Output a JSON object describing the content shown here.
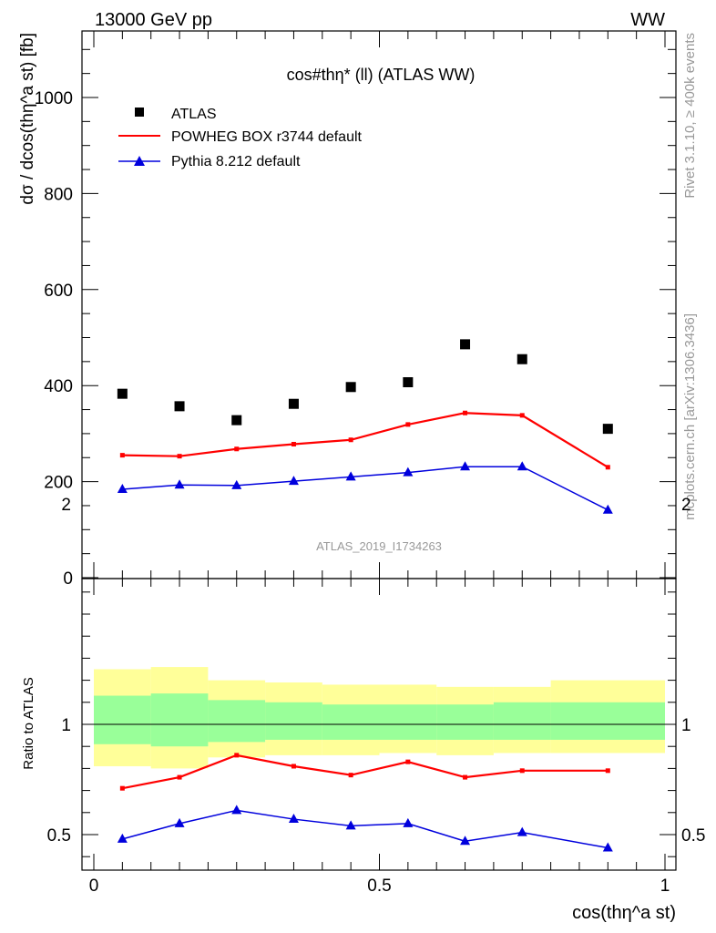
{
  "header": {
    "left": "13000 GeV pp",
    "right": "WW"
  },
  "chart_data": {
    "type": "scatter",
    "title": "cos#thη* (ll) (ATLAS WW)",
    "xlabel": "cos(thη^a st)",
    "ylabel": "dσ / dcos(thη^a st) [fb]",
    "ratio_ylabel": "Ratio to ATLAS",
    "xlim": [
      0,
      1
    ],
    "ylim": [
      0,
      1150
    ],
    "ratio_ylim": [
      0.3,
      2.3
    ],
    "watermark": "ATLAS_2019_I1734263",
    "side_text_top": "Rivet 3.1.10, ≥ 400k events",
    "side_text_bottom": "mcplots.cern.ch [arXiv:1306.3436]",
    "legend_position": "top-left",
    "x_ticks": [
      "0",
      "0.5",
      "1"
    ],
    "y_ticks": [
      "0",
      "200",
      "400",
      "600",
      "800",
      "1000"
    ],
    "ratio_ticks": [
      "0.5",
      "1",
      "2"
    ],
    "x": [
      0.05,
      0.15,
      0.25,
      0.35,
      0.45,
      0.55,
      0.65,
      0.75,
      0.9
    ],
    "x_bins": [
      [
        0.0,
        0.1
      ],
      [
        0.1,
        0.2
      ],
      [
        0.2,
        0.3
      ],
      [
        0.3,
        0.4
      ],
      [
        0.4,
        0.5
      ],
      [
        0.5,
        0.6
      ],
      [
        0.6,
        0.7
      ],
      [
        0.7,
        0.8
      ],
      [
        0.8,
        1.0
      ]
    ],
    "series": [
      {
        "name": "ATLAS",
        "color": "#000000",
        "marker": "square",
        "values": [
          383,
          357,
          328,
          362,
          397,
          407,
          486,
          455,
          310
        ]
      },
      {
        "name": "POWHEG BOX r3744 default",
        "color": "#ff0000",
        "marker": "dash",
        "values": [
          255,
          253,
          268,
          278,
          287,
          319,
          343,
          338,
          230
        ]
      },
      {
        "name": "Pythia 8.212 default",
        "color": "#0000dd",
        "marker": "triangle",
        "values": [
          184,
          193,
          192,
          201,
          210,
          219,
          231,
          231,
          141
        ]
      }
    ],
    "ratio_series": [
      {
        "name": "POWHEG BOX r3744 default",
        "color": "#ff0000",
        "values": [
          0.71,
          0.76,
          0.86,
          0.81,
          0.77,
          0.83,
          0.76,
          0.79,
          0.79
        ]
      },
      {
        "name": "Pythia 8.212 default",
        "color": "#0000dd",
        "values": [
          0.48,
          0.55,
          0.61,
          0.57,
          0.54,
          0.55,
          0.47,
          0.51,
          0.44
        ]
      }
    ],
    "uncertainty_bands": {
      "stat_green": [
        [
          0.91,
          1.13
        ],
        [
          0.9,
          1.14
        ],
        [
          0.92,
          1.11
        ],
        [
          0.93,
          1.1
        ],
        [
          0.93,
          1.09
        ],
        [
          0.93,
          1.09
        ],
        [
          0.93,
          1.09
        ],
        [
          0.93,
          1.1
        ],
        [
          0.93,
          1.1
        ]
      ],
      "total_yellow": [
        [
          0.81,
          1.25
        ],
        [
          0.8,
          1.26
        ],
        [
          0.85,
          1.2
        ],
        [
          0.86,
          1.19
        ],
        [
          0.86,
          1.18
        ],
        [
          0.87,
          1.18
        ],
        [
          0.86,
          1.17
        ],
        [
          0.87,
          1.17
        ],
        [
          0.87,
          1.2
        ]
      ]
    }
  }
}
